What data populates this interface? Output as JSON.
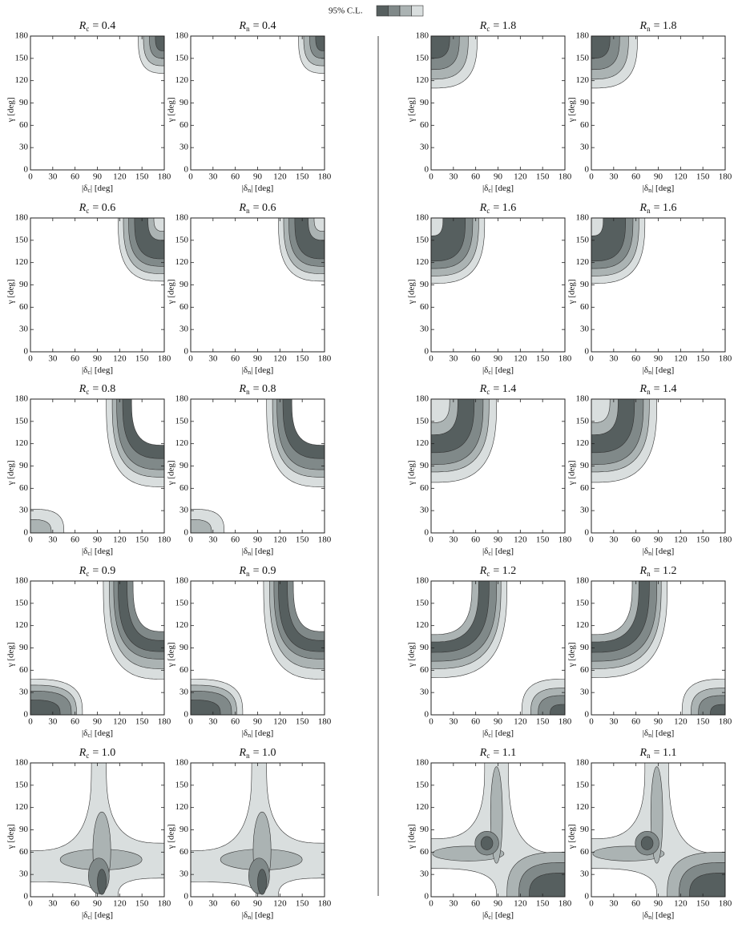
{
  "legend": {
    "label": "95% C.L.",
    "colors": [
      "#565f5f",
      "#808989",
      "#abb3b3",
      "#d9dede"
    ]
  },
  "chart_data": [
    {
      "type": "contour",
      "title": {
        "symbol": "R",
        "subscript": "c",
        "text": "= 0.4"
      },
      "xlabel": {
        "pre": "|δ",
        "subscript": "c",
        "post": "| [deg]"
      },
      "ylabel": "γ [deg]",
      "xlim": [
        0,
        180
      ],
      "ylim": [
        0,
        180
      ],
      "xticks": [
        0,
        30,
        60,
        90,
        120,
        150,
        180
      ],
      "yticks": [
        0,
        30,
        60,
        90,
        120,
        150,
        180
      ]
    },
    {
      "type": "contour",
      "title": {
        "symbol": "R",
        "subscript": "n",
        "text": "= 0.4"
      },
      "xlabel": {
        "pre": "|δ",
        "subscript": "n",
        "post": "| [deg]"
      },
      "ylabel": "γ [deg]",
      "xlim": [
        0,
        180
      ],
      "ylim": [
        0,
        180
      ],
      "xticks": [
        0,
        30,
        60,
        90,
        120,
        150,
        180
      ],
      "yticks": [
        0,
        30,
        60,
        90,
        120,
        150,
        180
      ]
    },
    {
      "type": "contour",
      "title": {
        "symbol": "R",
        "subscript": "c",
        "text": "= 1.8"
      },
      "xlabel": {
        "pre": "|δ",
        "subscript": "c",
        "post": "| [deg]"
      },
      "ylabel": "γ [deg]",
      "xlim": [
        0,
        180
      ],
      "ylim": [
        0,
        180
      ],
      "xticks": [
        0,
        30,
        60,
        90,
        120,
        150,
        180
      ],
      "yticks": [
        0,
        30,
        60,
        90,
        120,
        150,
        180
      ]
    },
    {
      "type": "contour",
      "title": {
        "symbol": "R",
        "subscript": "n",
        "text": "= 1.8"
      },
      "xlabel": {
        "pre": "|δ",
        "subscript": "n",
        "post": "| [deg]"
      },
      "ylabel": "γ [deg]",
      "xlim": [
        0,
        180
      ],
      "ylim": [
        0,
        180
      ],
      "xticks": [
        0,
        30,
        60,
        90,
        120,
        150,
        180
      ],
      "yticks": [
        0,
        30,
        60,
        90,
        120,
        150,
        180
      ]
    },
    {
      "type": "contour",
      "title": {
        "symbol": "R",
        "subscript": "c",
        "text": "= 0.6"
      },
      "xlabel": {
        "pre": "|δ",
        "subscript": "c",
        "post": "| [deg]"
      },
      "ylabel": "γ [deg]",
      "xlim": [
        0,
        180
      ],
      "ylim": [
        0,
        180
      ],
      "xticks": [
        0,
        30,
        60,
        90,
        120,
        150,
        180
      ],
      "yticks": [
        0,
        30,
        60,
        90,
        120,
        150,
        180
      ]
    },
    {
      "type": "contour",
      "title": {
        "symbol": "R",
        "subscript": "n",
        "text": "= 0.6"
      },
      "xlabel": {
        "pre": "|δ",
        "subscript": "n",
        "post": "| [deg]"
      },
      "ylabel": "γ [deg]",
      "xlim": [
        0,
        180
      ],
      "ylim": [
        0,
        180
      ],
      "xticks": [
        0,
        30,
        60,
        90,
        120,
        150,
        180
      ],
      "yticks": [
        0,
        30,
        60,
        90,
        120,
        150,
        180
      ]
    },
    {
      "type": "contour",
      "title": {
        "symbol": "R",
        "subscript": "c",
        "text": "= 1.6"
      },
      "xlabel": {
        "pre": "|δ",
        "subscript": "c",
        "post": "| [deg]"
      },
      "ylabel": "γ [deg]",
      "xlim": [
        0,
        180
      ],
      "ylim": [
        0,
        180
      ],
      "xticks": [
        0,
        30,
        60,
        90,
        120,
        150,
        180
      ],
      "yticks": [
        0,
        30,
        60,
        90,
        120,
        150,
        180
      ]
    },
    {
      "type": "contour",
      "title": {
        "symbol": "R",
        "subscript": "n",
        "text": "= 1.6"
      },
      "xlabel": {
        "pre": "|δ",
        "subscript": "n",
        "post": "| [deg]"
      },
      "ylabel": "γ [deg]",
      "xlim": [
        0,
        180
      ],
      "ylim": [
        0,
        180
      ],
      "xticks": [
        0,
        30,
        60,
        90,
        120,
        150,
        180
      ],
      "yticks": [
        0,
        30,
        60,
        90,
        120,
        150,
        180
      ]
    },
    {
      "type": "contour",
      "title": {
        "symbol": "R",
        "subscript": "c",
        "text": "= 0.8"
      },
      "xlabel": {
        "pre": "|δ",
        "subscript": "c",
        "post": "| [deg]"
      },
      "ylabel": "γ [deg]",
      "xlim": [
        0,
        180
      ],
      "ylim": [
        0,
        180
      ],
      "xticks": [
        0,
        30,
        60,
        90,
        120,
        150,
        180
      ],
      "yticks": [
        0,
        30,
        60,
        90,
        120,
        150,
        180
      ]
    },
    {
      "type": "contour",
      "title": {
        "symbol": "R",
        "subscript": "n",
        "text": "= 0.8"
      },
      "xlabel": {
        "pre": "|δ",
        "subscript": "n",
        "post": "| [deg]"
      },
      "ylabel": "γ [deg]",
      "xlim": [
        0,
        180
      ],
      "ylim": [
        0,
        180
      ],
      "xticks": [
        0,
        30,
        60,
        90,
        120,
        150,
        180
      ],
      "yticks": [
        0,
        30,
        60,
        90,
        120,
        150,
        180
      ]
    },
    {
      "type": "contour",
      "title": {
        "symbol": "R",
        "subscript": "c",
        "text": "= 1.4"
      },
      "xlabel": {
        "pre": "|δ",
        "subscript": "c",
        "post": "| [deg]"
      },
      "ylabel": "γ [deg]",
      "xlim": [
        0,
        180
      ],
      "ylim": [
        0,
        180
      ],
      "xticks": [
        0,
        30,
        60,
        90,
        120,
        150,
        180
      ],
      "yticks": [
        0,
        30,
        60,
        90,
        120,
        150,
        180
      ]
    },
    {
      "type": "contour",
      "title": {
        "symbol": "R",
        "subscript": "n",
        "text": "= 1.4"
      },
      "xlabel": {
        "pre": "|δ",
        "subscript": "n",
        "post": "| [deg]"
      },
      "ylabel": "γ [deg]",
      "xlim": [
        0,
        180
      ],
      "ylim": [
        0,
        180
      ],
      "xticks": [
        0,
        30,
        60,
        90,
        120,
        150,
        180
      ],
      "yticks": [
        0,
        30,
        60,
        90,
        120,
        150,
        180
      ]
    },
    {
      "type": "contour",
      "title": {
        "symbol": "R",
        "subscript": "c",
        "text": "= 0.9"
      },
      "xlabel": {
        "pre": "|δ",
        "subscript": "c",
        "post": "| [deg]"
      },
      "ylabel": "γ [deg]",
      "xlim": [
        0,
        180
      ],
      "ylim": [
        0,
        180
      ],
      "xticks": [
        0,
        30,
        60,
        90,
        120,
        150,
        180
      ],
      "yticks": [
        0,
        30,
        60,
        90,
        120,
        150,
        180
      ]
    },
    {
      "type": "contour",
      "title": {
        "symbol": "R",
        "subscript": "n",
        "text": "= 0.9"
      },
      "xlabel": {
        "pre": "|δ",
        "subscript": "n",
        "post": "| [deg]"
      },
      "ylabel": "γ [deg]",
      "xlim": [
        0,
        180
      ],
      "ylim": [
        0,
        180
      ],
      "xticks": [
        0,
        30,
        60,
        90,
        120,
        150,
        180
      ],
      "yticks": [
        0,
        30,
        60,
        90,
        120,
        150,
        180
      ]
    },
    {
      "type": "contour",
      "title": {
        "symbol": "R",
        "subscript": "c",
        "text": "= 1.2"
      },
      "xlabel": {
        "pre": "|δ",
        "subscript": "c",
        "post": "| [deg]"
      },
      "ylabel": "γ [deg]",
      "xlim": [
        0,
        180
      ],
      "ylim": [
        0,
        180
      ],
      "xticks": [
        0,
        30,
        60,
        90,
        120,
        150,
        180
      ],
      "yticks": [
        0,
        30,
        60,
        90,
        120,
        150,
        180
      ]
    },
    {
      "type": "contour",
      "title": {
        "symbol": "R",
        "subscript": "n",
        "text": "= 1.2"
      },
      "xlabel": {
        "pre": "|δ",
        "subscript": "n",
        "post": "| [deg]"
      },
      "ylabel": "γ [deg]",
      "xlim": [
        0,
        180
      ],
      "ylim": [
        0,
        180
      ],
      "xticks": [
        0,
        30,
        60,
        90,
        120,
        150,
        180
      ],
      "yticks": [
        0,
        30,
        60,
        90,
        120,
        150,
        180
      ]
    },
    {
      "type": "contour",
      "title": {
        "symbol": "R",
        "subscript": "c",
        "text": "= 1.0"
      },
      "xlabel": {
        "pre": "|δ",
        "subscript": "c",
        "post": "| [deg]"
      },
      "ylabel": "γ [deg]",
      "xlim": [
        0,
        180
      ],
      "ylim": [
        0,
        180
      ],
      "xticks": [
        0,
        30,
        60,
        90,
        120,
        150,
        180
      ],
      "yticks": [
        0,
        30,
        60,
        90,
        120,
        150,
        180
      ]
    },
    {
      "type": "contour",
      "title": {
        "symbol": "R",
        "subscript": "n",
        "text": "= 1.0"
      },
      "xlabel": {
        "pre": "|δ",
        "subscript": "n",
        "post": "| [deg]"
      },
      "ylabel": "γ [deg]",
      "xlim": [
        0,
        180
      ],
      "ylim": [
        0,
        180
      ],
      "xticks": [
        0,
        30,
        60,
        90,
        120,
        150,
        180
      ],
      "yticks": [
        0,
        30,
        60,
        90,
        120,
        150,
        180
      ]
    },
    {
      "type": "contour",
      "title": {
        "symbol": "R",
        "subscript": "c",
        "text": "= 1.1"
      },
      "xlabel": {
        "pre": "|δ",
        "subscript": "c",
        "post": "| [deg]"
      },
      "ylabel": "γ [deg]",
      "xlim": [
        0,
        180
      ],
      "ylim": [
        0,
        180
      ],
      "xticks": [
        0,
        30,
        60,
        90,
        120,
        150,
        180
      ],
      "yticks": [
        0,
        30,
        60,
        90,
        120,
        150,
        180
      ]
    },
    {
      "type": "contour",
      "title": {
        "symbol": "R",
        "subscript": "n",
        "text": "= 1.1"
      },
      "xlabel": {
        "pre": "|δ",
        "subscript": "n",
        "post": "| [deg]"
      },
      "ylabel": "γ [deg]",
      "xlim": [
        0,
        180
      ],
      "ylim": [
        0,
        180
      ],
      "xticks": [
        0,
        30,
        60,
        90,
        120,
        150,
        180
      ],
      "yticks": [
        0,
        30,
        60,
        90,
        120,
        150,
        180
      ]
    }
  ]
}
